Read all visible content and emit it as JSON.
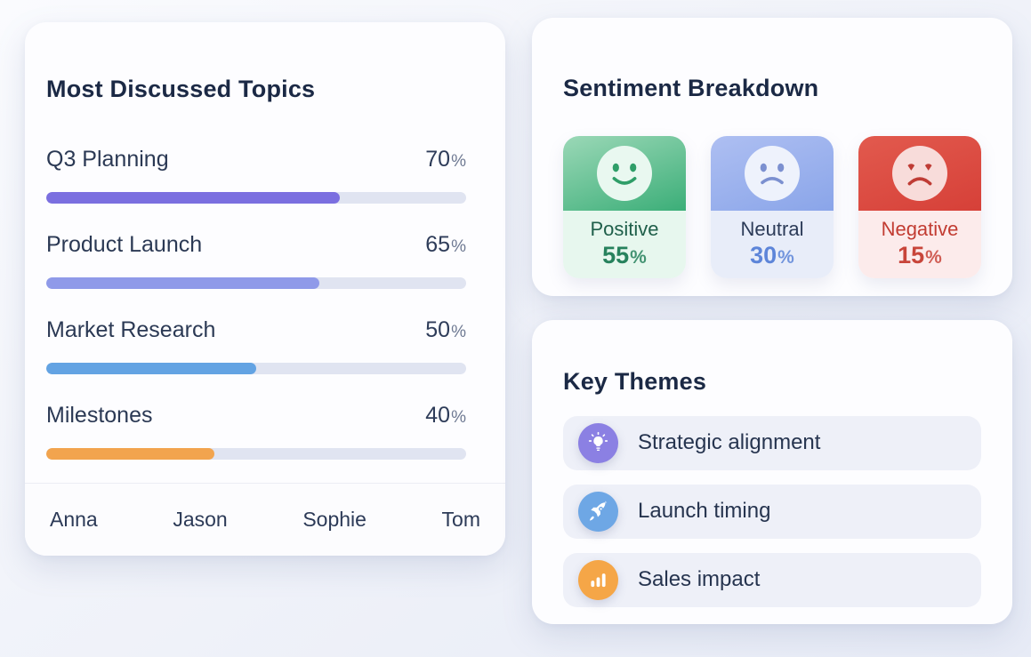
{
  "percent_sign": "%",
  "topics_card": {
    "title": "Most Discussed Topics",
    "track_color": "#e0e4f1",
    "topics": [
      {
        "label": "Q3 Planning",
        "value": 70,
        "color": "#7b6fe0"
      },
      {
        "label": "Product Launch",
        "value": 65,
        "color": "#8f9ae9"
      },
      {
        "label": "Market Research",
        "value": 50,
        "color": "#63a3e3"
      },
      {
        "label": "Milestones",
        "value": 40,
        "color": "#f2a44e"
      }
    ],
    "participants": [
      "Anna",
      "Jason",
      "Sophie",
      "Tom"
    ]
  },
  "sentiment_card": {
    "title": "Sentiment Breakdown",
    "sentiments": [
      {
        "label": "Positive",
        "value": 55,
        "icon": "smile-face-icon",
        "gradient": {
          "from": "#9bd8b7",
          "to": "#3bae78"
        },
        "face_bg": "#e9f8f0",
        "face_color": "#2f9e68",
        "panel_bg": "#e7f7ee",
        "label_color": "#1f5f4a",
        "value_color": "#27825d"
      },
      {
        "label": "Neutral",
        "value": 30,
        "icon": "frown-face-icon",
        "gradient": {
          "from": "#aebff2",
          "to": "#8aa5e9"
        },
        "face_bg": "#eef2fc",
        "face_color": "#7c90d0",
        "panel_bg": "#e8edf9",
        "label_color": "#2c3b58",
        "value_color": "#5d85d9"
      },
      {
        "label": "Negative",
        "value": 15,
        "icon": "angry-face-icon",
        "gradient": {
          "from": "#e25a4e",
          "to": "#d64038"
        },
        "face_bg": "#f8dcda",
        "face_color": "#bf3c35",
        "panel_bg": "#fcebeb",
        "label_color": "#c23c32",
        "value_color": "#c8453a"
      }
    ]
  },
  "themes_card": {
    "title": "Key Themes",
    "item_bg": "#eef0f8",
    "themes": [
      {
        "label": "Strategic alignment",
        "icon": "lightbulb-icon",
        "icon_bg": "#8b80e3"
      },
      {
        "label": "Launch timing",
        "icon": "rocket-icon",
        "icon_bg": "#6ea7e5"
      },
      {
        "label": "Sales impact",
        "icon": "bar-chart-icon",
        "icon_bg": "#f5a647"
      }
    ]
  },
  "chart_data": [
    {
      "type": "bar",
      "title": "Most Discussed Topics",
      "orientation": "horizontal",
      "categories": [
        "Q3 Planning",
        "Product Launch",
        "Market Research",
        "Milestones"
      ],
      "values": [
        70,
        65,
        50,
        40
      ],
      "unit": "%",
      "xlim": [
        0,
        100
      ],
      "bar_colors": [
        "#7b6fe0",
        "#8f9ae9",
        "#63a3e3",
        "#f2a44e"
      ],
      "footer_labels": [
        "Anna",
        "Jason",
        "Sophie",
        "Tom"
      ]
    },
    {
      "type": "pie",
      "title": "Sentiment Breakdown",
      "categories": [
        "Positive",
        "Neutral",
        "Negative"
      ],
      "values": [
        55,
        30,
        15
      ],
      "unit": "%",
      "colors": [
        "#3bae78",
        "#8aa5e9",
        "#d64038"
      ]
    },
    {
      "type": "table",
      "title": "Key Themes",
      "items": [
        "Strategic alignment",
        "Launch timing",
        "Sales impact"
      ]
    }
  ]
}
